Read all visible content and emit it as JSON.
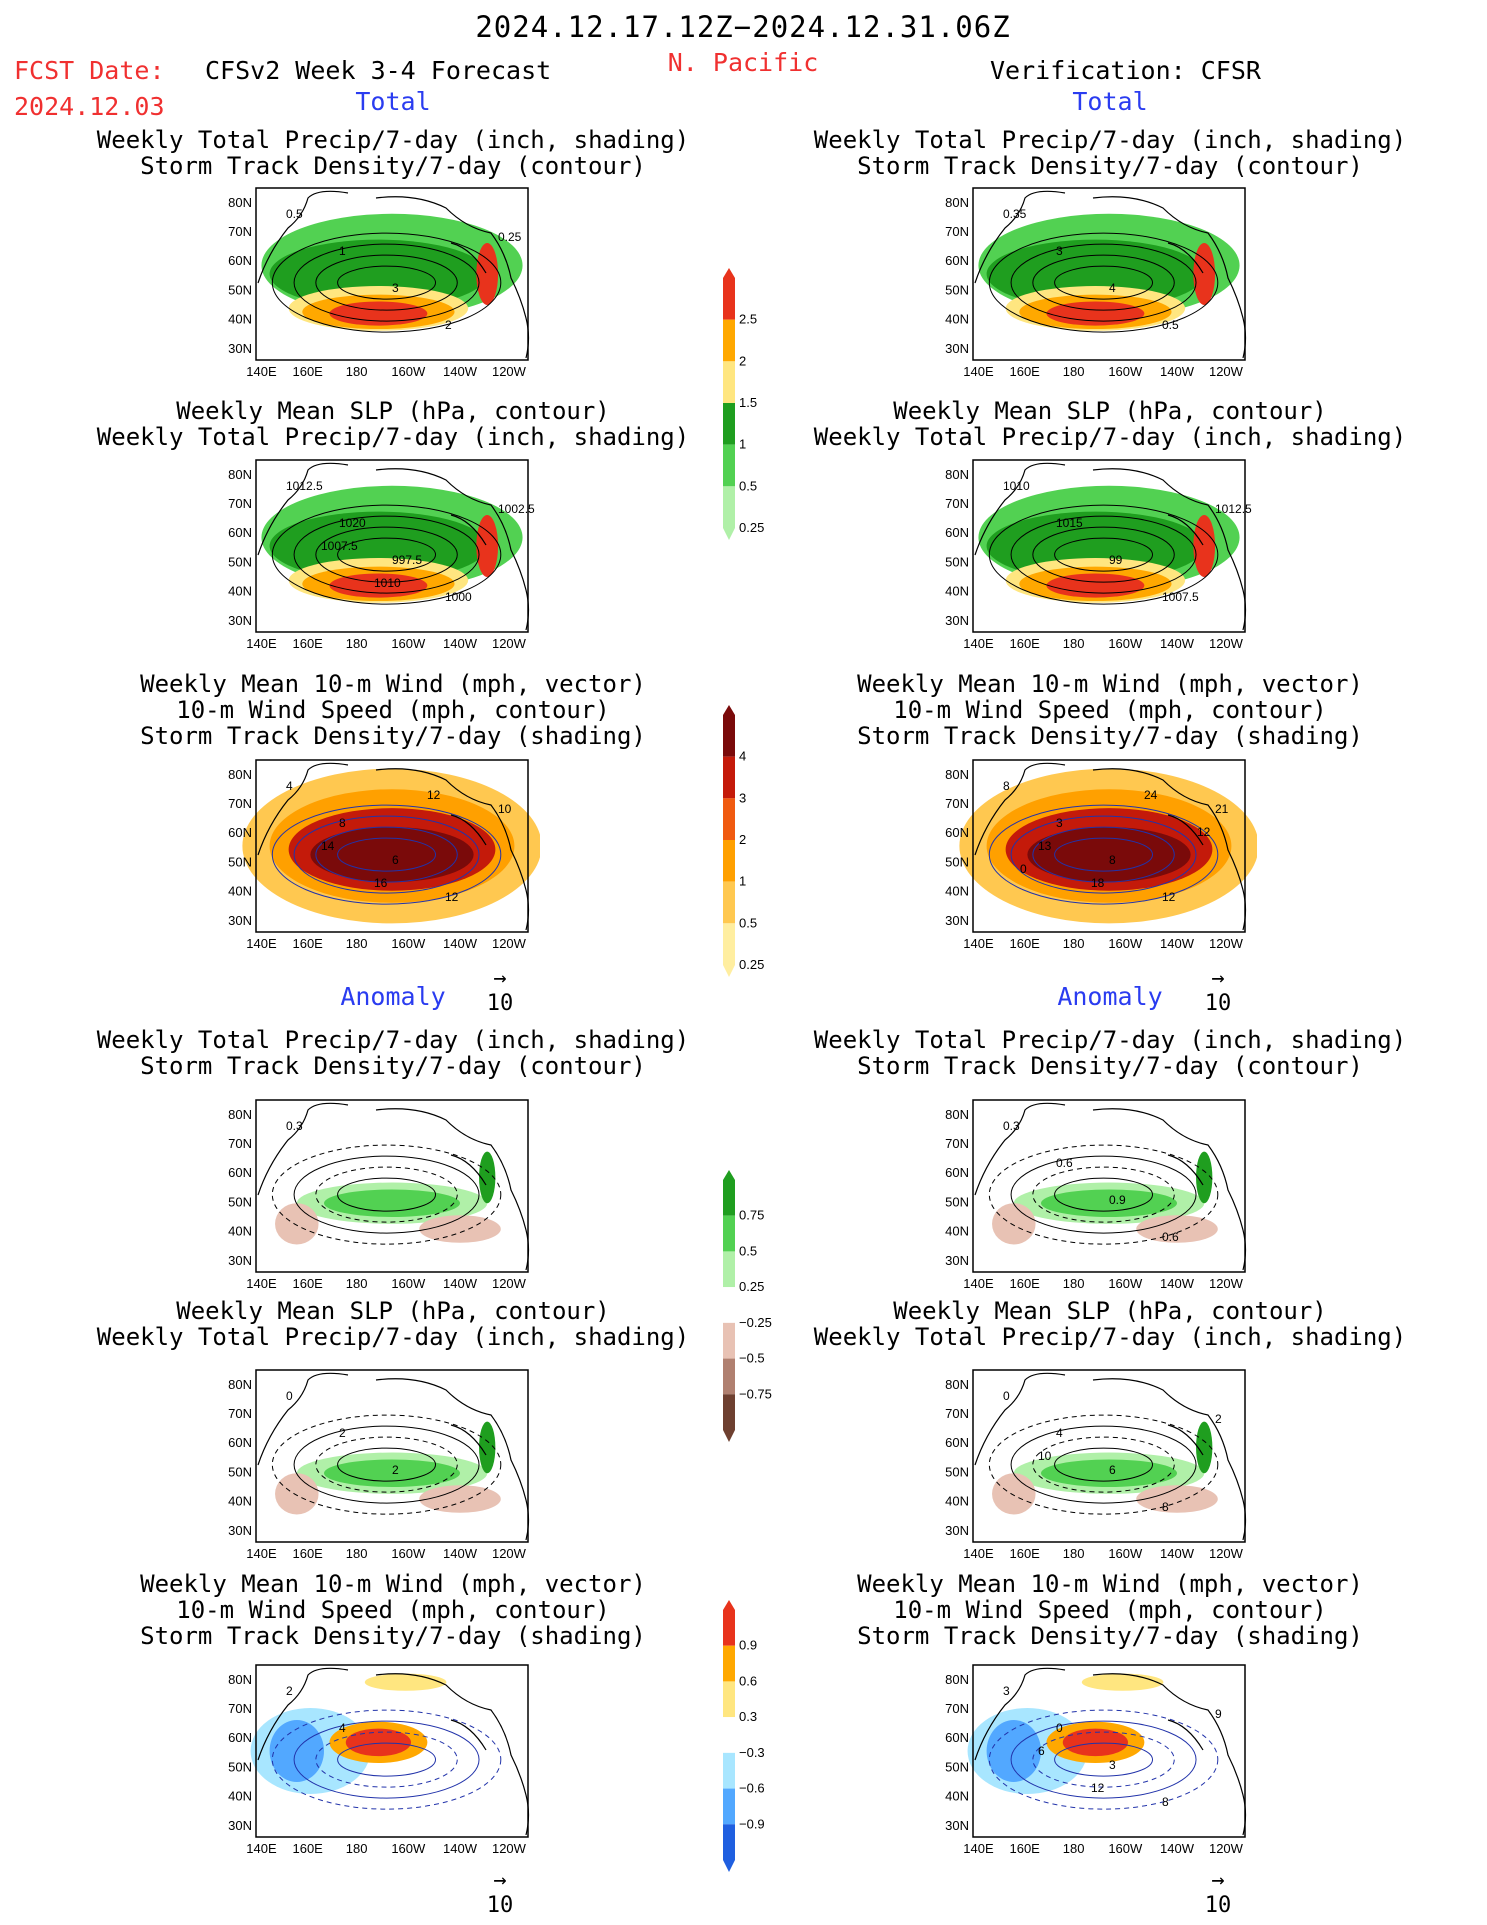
{
  "header": {
    "period": "2024.12.17.12Z−2024.12.31.06Z",
    "region": "N. Pacific",
    "fcst_label": "FCST Date:",
    "fcst_date": "2024.12.03",
    "model_title": "CFSv2 Week 3-4 Forecast",
    "verification": "Verification: CFSR"
  },
  "sections": {
    "total": "Total",
    "anomaly": "Anomaly"
  },
  "titles": {
    "precip_storm": [
      "Weekly Total Precip/7-day (inch, shading)",
      "Storm Track Density/7-day (contour)"
    ],
    "slp_precip": [
      "Weekly Mean SLP (hPa, contour)",
      "Weekly Total Precip/7-day (inch, shading)"
    ],
    "wind_storm": [
      "Weekly Mean 10-m Wind (mph, vector)",
      "10-m Wind Speed (mph, contour)",
      "Storm Track Density/7-day (shading)"
    ]
  },
  "axes": {
    "lat_ticks": [
      "80N",
      "70N",
      "60N",
      "50N",
      "40N",
      "30N"
    ],
    "lon_ticks": [
      "140E",
      "160E",
      "180",
      "160W",
      "140W",
      "120W"
    ]
  },
  "vector_ref": "10",
  "colorbars": {
    "precip_total": {
      "labels": [
        "2.5",
        "2",
        "1.5",
        "1",
        "0.5",
        "0.25"
      ],
      "colors": [
        "#e8331c",
        "#ffa800",
        "#ffe680",
        "#1f9e1f",
        "#52d152",
        "#b0f0a8"
      ]
    },
    "storm_total": {
      "labels": [
        "4",
        "3",
        "2",
        "1",
        "0.5",
        "0.25"
      ],
      "colors": [
        "#7a0a0a",
        "#c41a0a",
        "#f05a10",
        "#ffa000",
        "#ffc850",
        "#ffeea0"
      ]
    },
    "precip_anom": {
      "labels": [
        "0.75",
        "0.5",
        "0.25",
        "−0.25",
        "−0.5",
        "−0.75"
      ],
      "colors": [
        "#1f9e1f",
        "#52d152",
        "#b0f0a8",
        "#ffffff",
        "#e8c2b4",
        "#b08070",
        "#6e4030"
      ]
    },
    "wind_anom": {
      "labels": [
        "0.9",
        "0.6",
        "0.3",
        "−0.3",
        "−0.6",
        "−0.9"
      ],
      "colors": [
        "#e8331c",
        "#ffa800",
        "#ffe680",
        "#ffffff",
        "#a8e6ff",
        "#52a8ff",
        "#1f5fe0"
      ]
    }
  },
  "panel_labels": {
    "fl_p1": [
      "0.5",
      "1",
      "3",
      "2",
      "0.25"
    ],
    "fr_p1": [
      "0.35",
      "3",
      "4",
      "0.5"
    ],
    "fl_p2": [
      "1012.5",
      "1020",
      "997.5",
      "1000",
      "1002.5",
      "1007.5",
      "1010"
    ],
    "fr_p2": [
      "1010",
      "1015",
      "99",
      "1007.5",
      "1012.5"
    ],
    "fl_p3": [
      "4",
      "8",
      "6",
      "12",
      "10",
      "14",
      "16",
      "12"
    ],
    "fr_p3": [
      "8",
      "3",
      "8",
      "12",
      "21",
      "13",
      "18",
      "24",
      "12",
      "0"
    ],
    "fl_a1": [
      "0.3"
    ],
    "fr_a1": [
      "0.3",
      "0.6",
      "0.9",
      "0.6"
    ],
    "fl_a2": [
      "0",
      "2",
      "2"
    ],
    "fr_a2": [
      "0",
      "4",
      "6",
      "8",
      "2",
      "10"
    ],
    "fl_a3": [
      "2",
      "4"
    ],
    "fr_a3": [
      "3",
      "0",
      "3",
      "8",
      "9",
      "6",
      "12"
    ]
  }
}
